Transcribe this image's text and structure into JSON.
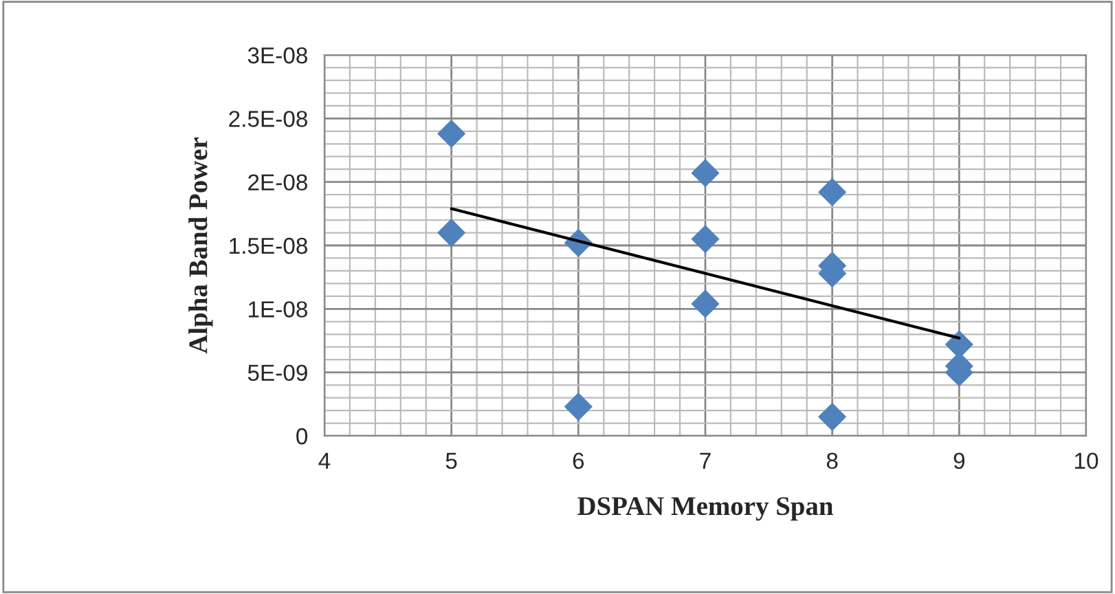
{
  "chart_data": {
    "type": "scatter",
    "xlabel": "DSPAN Memory Span",
    "ylabel": "Alpha Band Power",
    "xlim": [
      4,
      10
    ],
    "xticks": [
      4,
      5,
      6,
      7,
      8,
      9,
      10
    ],
    "ylim": [
      0,
      3e-08
    ],
    "yticks": [
      {
        "value": 0,
        "label": "0"
      },
      {
        "value": 5e-09,
        "label": "5E-09"
      },
      {
        "value": 1e-08,
        "label": "1E-08"
      },
      {
        "value": 1.5e-08,
        "label": "1.5E-08"
      },
      {
        "value": 2e-08,
        "label": "2E-08"
      },
      {
        "value": 2.5e-08,
        "label": "2.5E-08"
      },
      {
        "value": 3e-08,
        "label": "3E-08"
      }
    ],
    "grid": true,
    "series": [
      {
        "marker": "diamond",
        "color": "#4f81bd",
        "x": [
          5,
          5,
          6,
          6,
          7,
          7,
          7,
          8,
          8,
          8,
          8,
          9,
          9,
          9
        ],
        "values": [
          2.38e-08,
          1.6e-08,
          1.52e-08,
          2.3e-09,
          2.07e-08,
          1.55e-08,
          1.04e-08,
          1.92e-08,
          1.34e-08,
          1.28e-08,
          1.5e-09,
          7.2e-09,
          5.5e-09,
          5e-09
        ]
      },
      {
        "type": "line",
        "color": "#000000",
        "x": [
          5,
          9
        ],
        "values": [
          1.79e-08,
          7.7e-09
        ]
      }
    ]
  }
}
